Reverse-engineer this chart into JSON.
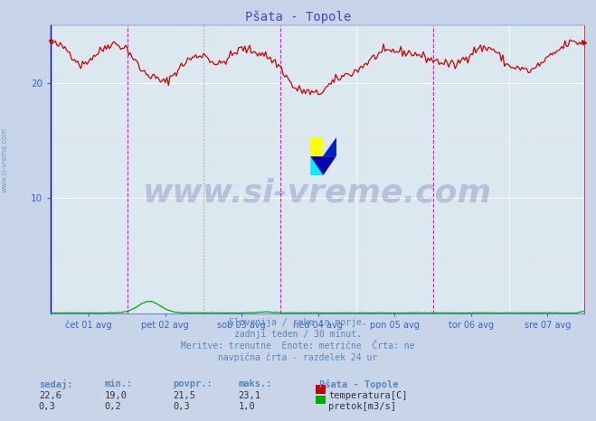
{
  "title": "Pšata - Topole",
  "title_color": "#4444cc",
  "bg_color": "#c8d4e8",
  "plot_bg_color": "#dce8f0",
  "grid_color": "#ffffff",
  "grid_minor_color": "#ffcccc",
  "ylim": [
    0,
    25
  ],
  "yticks": [
    10,
    20
  ],
  "n_points": 336,
  "temp_color": "#cc0000",
  "flow_color": "#00aa00",
  "vline_color": "#ff00ff",
  "left_spine_color": "#0000cc",
  "axis_label_color": "#3366cc",
  "text_color": "#5588bb",
  "xlabel_days": [
    "čet 01 avg",
    "pet 02 avg",
    "sob 03 avg",
    "ned 04 avg",
    "pon 05 avg",
    "tor 06 avg",
    "sre 07 avg"
  ],
  "subtitle_lines": [
    "Slovenija / reke in morje.",
    "zadnji teden / 30 minut.",
    "Meritve: trenutne  Enote: metrične  Črta: ne",
    "navpična črta - razdelek 24 ur"
  ],
  "stats_headers": [
    "sedaj:",
    "min.:",
    "povpr.:",
    "maks.:"
  ],
  "station_name": "Pšata - Topole",
  "temp_stats": [
    22.6,
    19.0,
    21.5,
    23.1
  ],
  "flow_stats": [
    0.3,
    0.2,
    0.3,
    1.0
  ],
  "temp_label": "temperatura[C]",
  "flow_label": "pretok[m3/s]",
  "watermark": "www.si-vreme.com",
  "watermark_color": "#1a237e"
}
